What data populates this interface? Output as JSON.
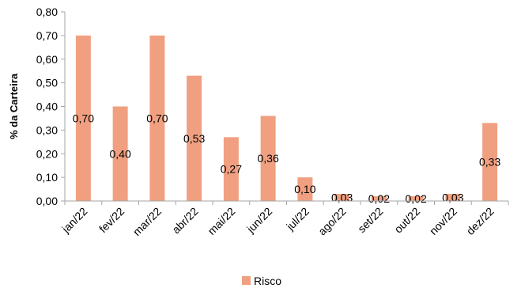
{
  "chart_data": {
    "type": "bar",
    "categories": [
      "jan/22",
      "fev/22",
      "mar/22",
      "abr/22",
      "mai/22",
      "jun/22",
      "jul/22",
      "ago/22",
      "set/22",
      "out/22",
      "nov/22",
      "dez/22"
    ],
    "series": [
      {
        "name": "Risco",
        "values": [
          0.7,
          0.4,
          0.7,
          0.53,
          0.27,
          0.36,
          0.1,
          0.03,
          0.02,
          0.02,
          0.03,
          0.33
        ],
        "labels": [
          "0,70",
          "0,40",
          "0,70",
          "0,53",
          "0,27",
          "0,36",
          "0,10",
          "0,03",
          "0,02",
          "0,02",
          "0,03",
          "0,33"
        ]
      }
    ],
    "yticks": [
      "0,00",
      "0,10",
      "0,20",
      "0,30",
      "0,40",
      "0,50",
      "0,60",
      "0,70",
      "0,80"
    ],
    "ylabel": "% da Carteira",
    "xlabel": "",
    "title": "",
    "ylim": [
      0,
      0.8
    ],
    "grid": false,
    "legend_position": "bottom",
    "colors": {
      "bar": "#f0a080",
      "axis": "#a6a6a6"
    }
  }
}
